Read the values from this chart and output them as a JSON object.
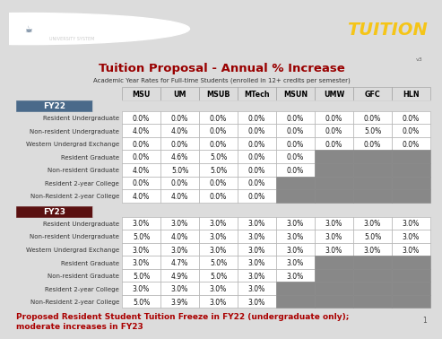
{
  "title": "Tuition Proposal - Annual % Increase",
  "subtitle": "Academic Year Rates for Full-time Students (enrolled in 12+ credits per semester)",
  "version": "v3",
  "header_bg": "#2b4a6b",
  "header_text_color": "#f5c518",
  "header_label": "TUITION",
  "columns": [
    "MSU",
    "UM",
    "MSUB",
    "MTech",
    "MSUN",
    "UMW",
    "GFC",
    "HLN"
  ],
  "fy22_label": "FY22",
  "fy22_bg": "#4a6a8a",
  "fy23_label": "FY23",
  "fy23_bg": "#5a1010",
  "fy22_rows": [
    {
      "label": "Resident Undergraduate",
      "values": [
        "0.0%",
        "0.0%",
        "0.0%",
        "0.0%",
        "0.0%",
        "0.0%",
        "0.0%",
        "0.0%"
      ],
      "active": [
        1,
        1,
        1,
        1,
        1,
        1,
        1,
        1
      ]
    },
    {
      "label": "Non-resident Undergraduate",
      "values": [
        "4.0%",
        "4.0%",
        "0.0%",
        "0.0%",
        "0.0%",
        "0.0%",
        "5.0%",
        "0.0%"
      ],
      "active": [
        1,
        1,
        1,
        1,
        1,
        1,
        1,
        1
      ]
    },
    {
      "label": "Western Undergrad Exchange",
      "values": [
        "0.0%",
        "0.0%",
        "0.0%",
        "0.0%",
        "0.0%",
        "0.0%",
        "0.0%",
        "0.0%"
      ],
      "active": [
        1,
        1,
        1,
        1,
        1,
        1,
        1,
        1
      ]
    },
    {
      "label": "Resident Graduate",
      "values": [
        "0.0%",
        "4.6%",
        "5.0%",
        "0.0%",
        "0.0%",
        "",
        "",
        ""
      ],
      "active": [
        1,
        1,
        1,
        1,
        1,
        0,
        0,
        0
      ]
    },
    {
      "label": "Non-resident Graduate",
      "values": [
        "4.0%",
        "5.0%",
        "5.0%",
        "0.0%",
        "0.0%",
        "",
        "",
        ""
      ],
      "active": [
        1,
        1,
        1,
        1,
        1,
        0,
        0,
        0
      ]
    },
    {
      "label": "Resident 2-year College",
      "values": [
        "0.0%",
        "0.0%",
        "0.0%",
        "0.0%",
        "",
        "",
        "",
        ""
      ],
      "active": [
        1,
        1,
        1,
        1,
        0,
        0,
        0,
        0
      ]
    },
    {
      "label": "Non-Resident 2-year College",
      "values": [
        "4.0%",
        "4.0%",
        "0.0%",
        "0.0%",
        "",
        "",
        "",
        ""
      ],
      "active": [
        1,
        1,
        1,
        1,
        0,
        0,
        0,
        0
      ]
    }
  ],
  "fy23_rows": [
    {
      "label": "Resident Undergraduate",
      "values": [
        "3.0%",
        "3.0%",
        "3.0%",
        "3.0%",
        "3.0%",
        "3.0%",
        "3.0%",
        "3.0%"
      ],
      "active": [
        1,
        1,
        1,
        1,
        1,
        1,
        1,
        1
      ]
    },
    {
      "label": "Non-resident Undergraduate",
      "values": [
        "5.0%",
        "4.0%",
        "3.0%",
        "3.0%",
        "3.0%",
        "3.0%",
        "5.0%",
        "3.0%"
      ],
      "active": [
        1,
        1,
        1,
        1,
        1,
        1,
        1,
        1
      ]
    },
    {
      "label": "Western Undergrad Exchange",
      "values": [
        "3.0%",
        "3.0%",
        "3.0%",
        "3.0%",
        "3.0%",
        "3.0%",
        "3.0%",
        "3.0%"
      ],
      "active": [
        1,
        1,
        1,
        1,
        1,
        1,
        1,
        1
      ]
    },
    {
      "label": "Resident Graduate",
      "values": [
        "3.0%",
        "4.7%",
        "5.0%",
        "3.0%",
        "3.0%",
        "",
        "",
        ""
      ],
      "active": [
        1,
        1,
        1,
        1,
        1,
        0,
        0,
        0
      ]
    },
    {
      "label": "Non-resident Graduate",
      "values": [
        "5.0%",
        "4.9%",
        "5.0%",
        "3.0%",
        "3.0%",
        "",
        "",
        ""
      ],
      "active": [
        1,
        1,
        1,
        1,
        1,
        0,
        0,
        0
      ]
    },
    {
      "label": "Resident 2-year College",
      "values": [
        "3.0%",
        "3.0%",
        "3.0%",
        "3.0%",
        "",
        "",
        "",
        ""
      ],
      "active": [
        1,
        1,
        1,
        1,
        0,
        0,
        0,
        0
      ]
    },
    {
      "label": "Non-Resident 2-year College",
      "values": [
        "5.0%",
        "3.9%",
        "3.0%",
        "3.0%",
        "",
        "",
        "",
        ""
      ],
      "active": [
        1,
        1,
        1,
        1,
        0,
        0,
        0,
        0
      ]
    }
  ],
  "footer_text1": "Proposed Resident Student Tuition Freeze in FY22 (undergraduate only);",
  "footer_text2": "moderate increases in FY23",
  "footer_color": "#aa0000",
  "inactive_bg": "#888888",
  "active_bg": "#ffffff",
  "title_color": "#990000",
  "subtitle_color": "#333333",
  "page_bg": "#dcdcdc",
  "label_color": "#333333",
  "col_header_bg": "#ffffff"
}
